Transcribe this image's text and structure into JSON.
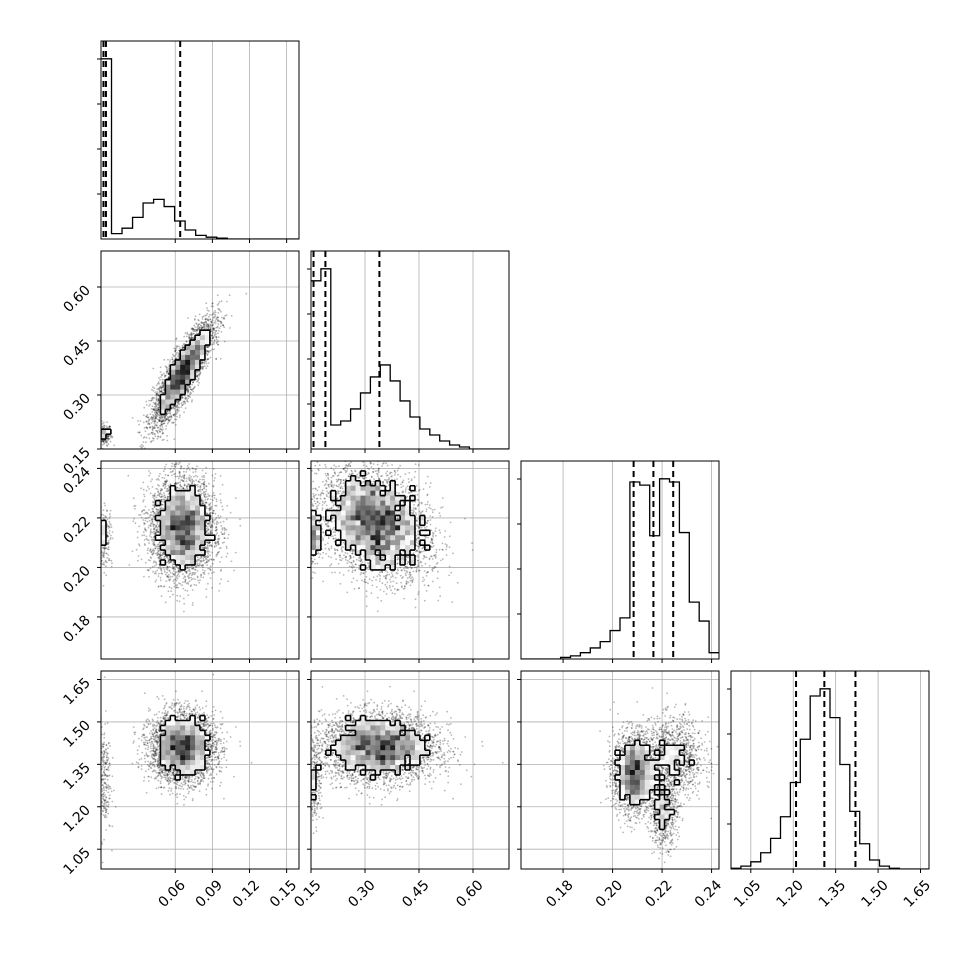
{
  "chart_data": {
    "type": "scatter",
    "plot_kind": "corner",
    "dimensions": [
      {
        "range": [
          0.0,
          0.16
        ],
        "ticks": [
          "0.06",
          "0.09",
          "0.12",
          "0.15"
        ],
        "tick_values": [
          0.06,
          0.09,
          0.12,
          0.15
        ]
      },
      {
        "range": [
          0.15,
          0.7
        ],
        "ticks": [
          "0.15",
          "0.30",
          "0.45",
          "0.60"
        ],
        "tick_values": [
          0.15,
          0.3,
          0.45,
          0.6
        ]
      },
      {
        "range": [
          0.163,
          0.243
        ],
        "ticks": [
          "0.18",
          "0.20",
          "0.22",
          "0.24"
        ],
        "tick_values": [
          0.18,
          0.2,
          0.22,
          0.24
        ]
      },
      {
        "range": [
          0.98,
          1.68
        ],
        "ticks": [
          "1.05",
          "1.20",
          "1.35",
          "1.50",
          "1.65"
        ],
        "tick_values": [
          1.05,
          1.2,
          1.35,
          1.5,
          1.65
        ]
      }
    ],
    "histograms": [
      {
        "edges_start": 0.0,
        "bin_width": 0.0085,
        "counts": [
          10,
          0.3,
          0.6,
          1.2,
          2.0,
          2.2,
          1.8,
          1.0,
          0.5,
          0.2,
          0.1,
          0.05,
          0,
          0,
          0,
          0,
          0,
          0,
          0
        ],
        "quantiles": [
          0.002,
          0.004,
          0.064
        ]
      },
      {
        "edges_start": 0.15,
        "bin_width": 0.0275,
        "counts": [
          4.2,
          4.5,
          0.6,
          0.7,
          1.0,
          1.4,
          1.8,
          2.1,
          1.7,
          1.2,
          0.8,
          0.5,
          0.35,
          0.2,
          0.1,
          0.05,
          0,
          0,
          0,
          0
        ],
        "quantiles": [
          0.157,
          0.19,
          0.34
        ]
      },
      {
        "edges_start": 0.163,
        "bin_width": 0.004,
        "counts": [
          0,
          0,
          0,
          0,
          0.05,
          0.1,
          0.2,
          0.35,
          0.55,
          0.9,
          1.3,
          5.6,
          5.5,
          3.9,
          5.7,
          5.6,
          4.0,
          1.8,
          1.2,
          0.2
        ],
        "quantiles": [
          0.2085,
          0.2165,
          0.2245
        ]
      },
      {
        "edges_start": 0.98,
        "bin_width": 0.035,
        "counts": [
          0.02,
          0.08,
          0.2,
          0.45,
          0.85,
          1.45,
          2.4,
          3.6,
          4.8,
          5.0,
          4.2,
          2.9,
          1.6,
          0.7,
          0.25,
          0.08,
          0.02,
          0,
          0,
          0
        ],
        "quantiles": [
          1.21,
          1.31,
          1.42
        ]
      }
    ],
    "pairs": [
      {
        "row": 1,
        "col": 0,
        "clusters": [
          {
            "cx": 0.0025,
            "cy": 0.19,
            "sx": 0.003,
            "sy": 0.015,
            "w": 0.05,
            "c": 0
          },
          {
            "cx": 0.066,
            "cy": 0.36,
            "sx": 0.012,
            "sy": 0.07,
            "w": 0.95,
            "c": 0.85
          }
        ]
      },
      {
        "row": 2,
        "col": 0,
        "clusters": [
          {
            "cx": 0.003,
            "cy": 0.2125,
            "sx": 0.003,
            "sy": 0.006,
            "w": 0.05,
            "c": 0
          },
          {
            "cx": 0.066,
            "cy": 0.216,
            "sx": 0.013,
            "sy": 0.01,
            "w": 0.95,
            "c": 0
          }
        ]
      },
      {
        "row": 2,
        "col": 1,
        "clusters": [
          {
            "cx": 0.158,
            "cy": 0.2125,
            "sx": 0.01,
            "sy": 0.006,
            "w": 0.06,
            "c": 0
          },
          {
            "cx": 0.33,
            "cy": 0.218,
            "sx": 0.075,
            "sy": 0.011,
            "w": 0.94,
            "c": -0.3
          }
        ]
      },
      {
        "row": 3,
        "col": 0,
        "clusters": [
          {
            "cx": 0.002,
            "cy": 1.3,
            "sx": 0.003,
            "sy": 0.1,
            "w": 0.06,
            "c": 0
          },
          {
            "cx": 0.066,
            "cy": 1.41,
            "sx": 0.013,
            "sy": 0.06,
            "w": 0.94,
            "c": 0
          }
        ]
      },
      {
        "row": 3,
        "col": 1,
        "clusters": [
          {
            "cx": 0.16,
            "cy": 1.3,
            "sx": 0.01,
            "sy": 0.08,
            "w": 0.06,
            "c": 0
          },
          {
            "cx": 0.34,
            "cy": 1.41,
            "sx": 0.08,
            "sy": 0.06,
            "w": 0.94,
            "c": 0
          }
        ]
      },
      {
        "row": 3,
        "col": 2,
        "clusters": [
          {
            "cx": 0.2085,
            "cy": 1.32,
            "sx": 0.004,
            "sy": 0.07,
            "w": 0.55,
            "c": 0
          },
          {
            "cx": 0.2245,
            "cy": 1.37,
            "sx": 0.006,
            "sy": 0.07,
            "w": 0.3,
            "c": 0
          },
          {
            "cx": 0.2205,
            "cy": 1.18,
            "sx": 0.0028,
            "sy": 0.06,
            "w": 0.15,
            "c": 0
          }
        ]
      }
    ],
    "grid": true,
    "title": "",
    "xlabel": "",
    "ylabel": ""
  }
}
